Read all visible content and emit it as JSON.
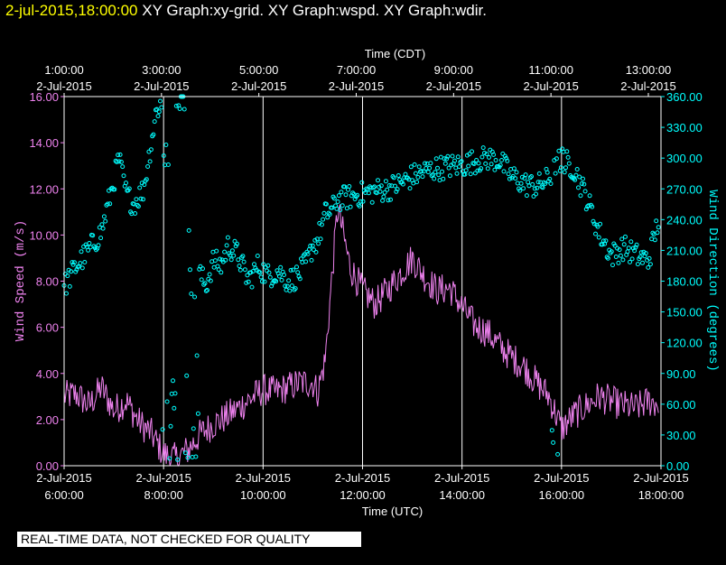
{
  "header": {
    "timestamp": "2-jul-2015,18:00:00",
    "graphs": "XY Graph:xy-grid.  XY Graph:wspd.  XY Graph:wdir."
  },
  "banner": "REAL-TIME DATA, NOT CHECKED FOR QUALITY",
  "colors": {
    "background": "#000000",
    "axis": "#ffffff",
    "wind_speed": "#ee82ee",
    "wind_direction": "#00ffff",
    "timestamp": "#ffff00"
  },
  "chart_data": {
    "type": "scatter",
    "grid": "vertical lines at labelled hours",
    "top_axis": {
      "label": "Time (CDT)",
      "ticks": [
        {
          "time": "1:00:00",
          "date": "2-Jul-2015",
          "hour": 1
        },
        {
          "time": "3:00:00",
          "date": "2-Jul-2015",
          "hour": 3
        },
        {
          "time": "5:00:00",
          "date": "2-Jul-2015",
          "hour": 5
        },
        {
          "time": "7:00:00",
          "date": "2-Jul-2015",
          "hour": 7
        },
        {
          "time": "9:00:00",
          "date": "2-Jul-2015",
          "hour": 9
        },
        {
          "time": "11:00:00",
          "date": "2-Jul-2015",
          "hour": 11
        },
        {
          "time": "13:00:00",
          "date": "2-Jul-2015",
          "hour": 13
        }
      ]
    },
    "bottom_axis": {
      "label": "Time (UTC)",
      "range_hours": [
        6,
        18
      ],
      "ticks": [
        {
          "date": "2-Jul-2015",
          "time": "6:00:00",
          "hour": 6
        },
        {
          "date": "2-Jul-2015",
          "time": "8:00:00",
          "hour": 8
        },
        {
          "date": "2-Jul-2015",
          "time": "10:00:00",
          "hour": 10
        },
        {
          "date": "2-Jul-2015",
          "time": "12:00:00",
          "hour": 12
        },
        {
          "date": "2-Jul-2015",
          "time": "14:00:00",
          "hour": 14
        },
        {
          "date": "2-Jul-2015",
          "time": "16:00:00",
          "hour": 16
        },
        {
          "date": "2-Jul-2015",
          "time": "18:00:00",
          "hour": 18
        }
      ]
    },
    "left_axis": {
      "label": "Wind Speed (m/s)",
      "ylim": [
        0,
        16
      ],
      "ticks": [
        "0.00",
        "2.00",
        "4.00",
        "6.00",
        "8.00",
        "10.00",
        "12.00",
        "14.00",
        "16.00"
      ]
    },
    "right_axis": {
      "label": "Wind Direction (degrees)",
      "ylim": [
        0,
        360
      ],
      "ticks": [
        "0.00",
        "30.00",
        "60.00",
        "90.00",
        "120.00",
        "150.00",
        "180.00",
        "210.00",
        "240.00",
        "270.00",
        "300.00",
        "330.00",
        "360.00"
      ]
    },
    "series": [
      {
        "kind": "line",
        "axis": "left",
        "hours": [
          6.0,
          6.25,
          6.5,
          6.75,
          7.0,
          7.25,
          7.5,
          7.75,
          8.0,
          8.25,
          8.5,
          8.75,
          9.0,
          9.25,
          9.5,
          9.75,
          10.0,
          10.25,
          10.5,
          10.75,
          11.0,
          11.1,
          11.25,
          11.4,
          11.5,
          11.75,
          12.0,
          12.25,
          12.5,
          12.75,
          13.0,
          13.25,
          13.5,
          13.75,
          14.0,
          14.25,
          14.5,
          14.75,
          15.0,
          15.25,
          15.5,
          15.75,
          16.0,
          16.25,
          16.5,
          16.75,
          17.0,
          17.25,
          17.5,
          17.75,
          17.95
        ],
        "values": [
          3.0,
          3.1,
          2.6,
          3.4,
          2.4,
          2.8,
          1.9,
          1.4,
          0.5,
          0.3,
          0.7,
          1.4,
          1.8,
          2.1,
          2.5,
          2.9,
          3.3,
          3.2,
          3.4,
          3.6,
          3.6,
          3.2,
          4.6,
          8.6,
          11.2,
          8.6,
          7.6,
          7.0,
          7.6,
          8.3,
          9.0,
          8.2,
          7.6,
          7.7,
          6.9,
          6.1,
          5.8,
          5.2,
          4.7,
          4.3,
          3.6,
          3.0,
          1.6,
          2.2,
          2.6,
          3.0,
          2.8,
          2.6,
          2.5,
          2.8,
          2.7
        ],
        "noise": 0.7
      },
      {
        "kind": "points",
        "axis": "right",
        "hours": [
          6.0,
          6.25,
          6.5,
          6.75,
          7.0,
          7.1,
          7.25,
          7.4,
          7.6,
          7.75,
          7.85,
          7.95,
          8.0,
          8.1,
          8.2,
          8.3,
          8.45,
          8.55,
          8.7,
          8.85,
          9.0,
          9.15,
          9.3,
          9.5,
          9.7,
          9.9,
          10.1,
          10.3,
          10.5,
          10.7,
          10.9,
          11.0,
          11.1,
          11.25,
          11.4,
          11.5,
          11.75,
          12.0,
          12.25,
          12.5,
          12.75,
          13.0,
          13.25,
          13.5,
          13.75,
          14.0,
          14.25,
          14.5,
          14.75,
          15.0,
          15.25,
          15.5,
          15.75,
          16.0,
          16.25,
          16.5,
          16.75,
          17.0,
          17.25,
          17.5,
          17.75,
          17.95
        ],
        "values": [
          175,
          195,
          210,
          228,
          278,
          300,
          265,
          255,
          270,
          315,
          345,
          355,
          300,
          305,
          345,
          355,
          360,
          158,
          190,
          175,
          200,
          195,
          215,
          205,
          180,
          195,
          185,
          190,
          180,
          185,
          200,
          215,
          220,
          245,
          250,
          260,
          262,
          265,
          268,
          270,
          275,
          282,
          287,
          290,
          292,
          293,
          297,
          300,
          298,
          282,
          275,
          272,
          280,
          300,
          290,
          262,
          228,
          205,
          213,
          205,
          200,
          240
        ],
        "scatter": 12
      }
    ]
  }
}
